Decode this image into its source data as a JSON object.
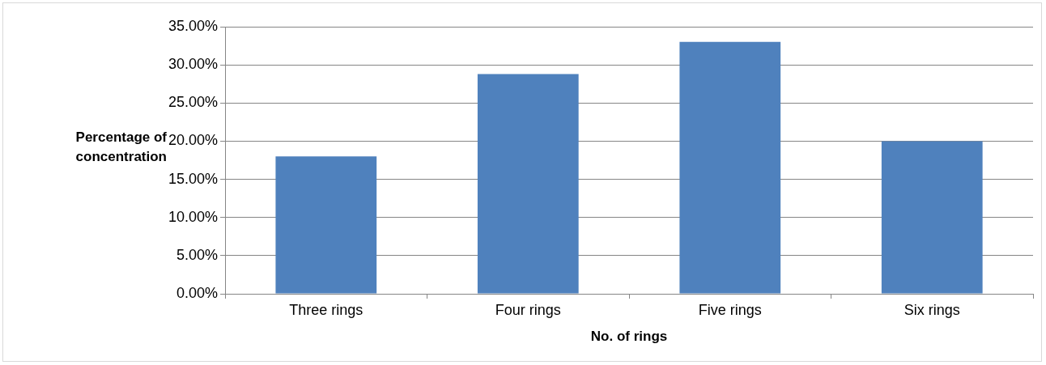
{
  "chart_data": {
    "type": "bar",
    "xlabel": "No. of rings",
    "ylabel": "Percentage of concentration",
    "categories": [
      "Three rings",
      "Four rings",
      "Five rings",
      "Six rings"
    ],
    "series": [
      {
        "color": "#4f81bd",
        "values": [
          18,
          28.8,
          33,
          20
        ]
      }
    ],
    "ylim": [
      0,
      35
    ],
    "yticks": [
      {
        "value": 0,
        "label": "0.00%"
      },
      {
        "value": 5,
        "label": "5.00%"
      },
      {
        "value": 10,
        "label": "10.00%"
      },
      {
        "value": 15,
        "label": "15.00%"
      },
      {
        "value": 20,
        "label": "20.00%"
      },
      {
        "value": 25,
        "label": "25.00%"
      },
      {
        "value": 30,
        "label": "30.00%"
      },
      {
        "value": 35,
        "label": "35.00%"
      }
    ],
    "grid": "y",
    "legend": false
  }
}
